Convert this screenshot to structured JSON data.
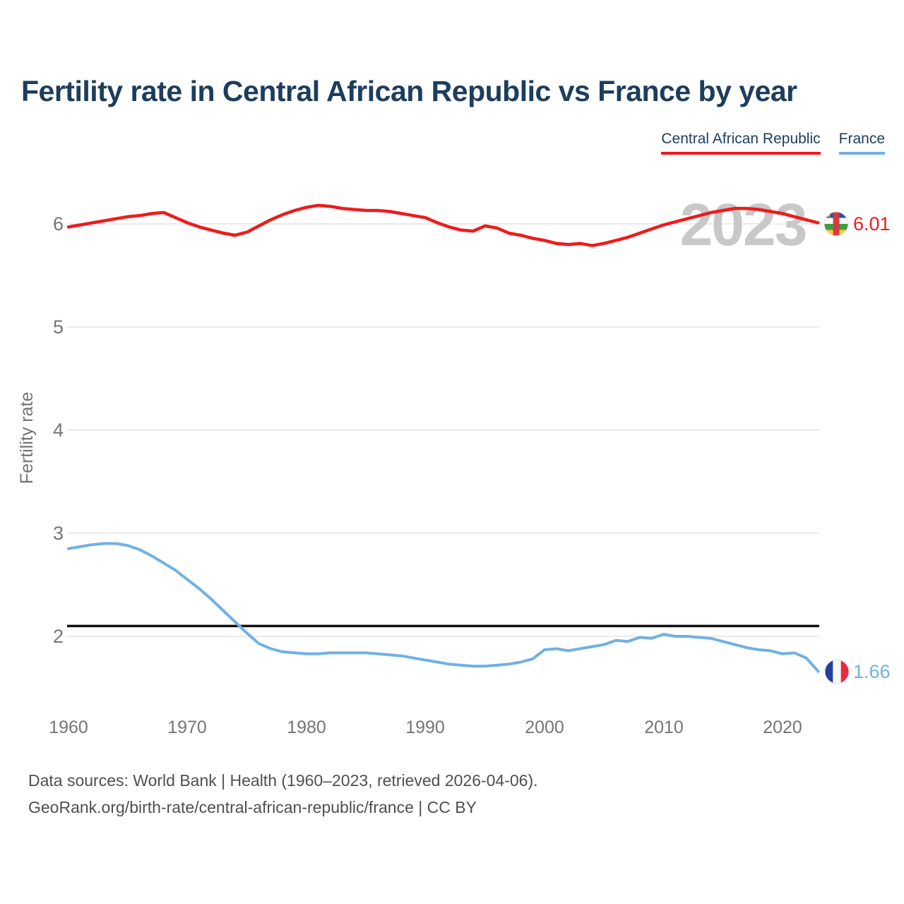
{
  "title": "Fertility rate in Central African Republic vs France by year",
  "watermark": "2023",
  "colors": {
    "title_text": "#1d3d5c",
    "axis_text": "#757575",
    "watermark": "#c8c8c8",
    "footer_text": "#4f4f4f",
    "gridline": "#ebebeb",
    "reference_line": "#111111"
  },
  "footer": {
    "line1": "Data sources: World Bank | Health (1960–2023, retrieved 2026-04-06).",
    "line2": "GeoRank.org/birth-rate/central-african-republic/france | CC BY"
  },
  "flags": {
    "car": {
      "stripe_colors": [
        "#2b4f9e",
        "#fafafa",
        "#3f9e3f",
        "#f7cf3f"
      ],
      "band_color": "#d33b40",
      "star_color": "#f7cf3f"
    },
    "france": {
      "stripe_colors": [
        "#20409a",
        "#f7f7f7",
        "#e12e40"
      ]
    }
  },
  "chart_data": {
    "type": "line",
    "title": "Fertility rate in Central African Republic vs France by year",
    "xlabel": "",
    "ylabel": "Fertility rate",
    "x_ticks": [
      1960,
      1970,
      1980,
      1990,
      2000,
      2010,
      2020
    ],
    "y_ticks": [
      6,
      5,
      4,
      3,
      2
    ],
    "xlim": [
      1960,
      2023
    ],
    "ylim": [
      1.45,
      6.4
    ],
    "grid": "horizontal",
    "legend_position": "top-right",
    "reference_line": {
      "value": 2.1,
      "color": "#111111"
    },
    "x": [
      1960,
      1961,
      1962,
      1963,
      1964,
      1965,
      1966,
      1967,
      1968,
      1969,
      1970,
      1971,
      1972,
      1973,
      1974,
      1975,
      1976,
      1977,
      1978,
      1979,
      1980,
      1981,
      1982,
      1983,
      1984,
      1985,
      1986,
      1987,
      1988,
      1989,
      1990,
      1991,
      1992,
      1993,
      1994,
      1995,
      1996,
      1997,
      1998,
      1999,
      2000,
      2001,
      2002,
      2003,
      2004,
      2005,
      2006,
      2007,
      2008,
      2009,
      2010,
      2011,
      2012,
      2013,
      2014,
      2015,
      2016,
      2017,
      2018,
      2019,
      2020,
      2021,
      2022,
      2023
    ],
    "series": [
      {
        "name": "Central African Republic",
        "color": "#ee1b1b",
        "end_label": "6.01",
        "values": [
          5.97,
          5.99,
          6.01,
          6.03,
          6.05,
          6.07,
          6.08,
          6.1,
          6.11,
          6.06,
          6.01,
          5.97,
          5.94,
          5.91,
          5.89,
          5.92,
          5.98,
          6.04,
          6.09,
          6.13,
          6.16,
          6.18,
          6.17,
          6.15,
          6.14,
          6.13,
          6.13,
          6.12,
          6.1,
          6.08,
          6.06,
          6.01,
          5.97,
          5.94,
          5.93,
          5.98,
          5.96,
          5.91,
          5.89,
          5.86,
          5.84,
          5.81,
          5.8,
          5.81,
          5.79,
          5.81,
          5.84,
          5.87,
          5.91,
          5.95,
          5.99,
          6.02,
          6.05,
          6.08,
          6.11,
          6.13,
          6.15,
          6.15,
          6.14,
          6.12,
          6.1,
          6.07,
          6.04,
          6.01
        ]
      },
      {
        "name": "France",
        "color": "#70b1e3",
        "end_label": "1.66",
        "values": [
          2.85,
          2.87,
          2.89,
          2.9,
          2.9,
          2.88,
          2.84,
          2.78,
          2.71,
          2.64,
          2.55,
          2.46,
          2.36,
          2.25,
          2.14,
          2.03,
          1.93,
          1.88,
          1.85,
          1.84,
          1.83,
          1.83,
          1.84,
          1.84,
          1.84,
          1.84,
          1.83,
          1.82,
          1.81,
          1.79,
          1.77,
          1.75,
          1.73,
          1.72,
          1.71,
          1.71,
          1.72,
          1.73,
          1.75,
          1.78,
          1.87,
          1.88,
          1.86,
          1.88,
          1.9,
          1.92,
          1.96,
          1.95,
          1.99,
          1.98,
          2.02,
          2.0,
          2.0,
          1.99,
          1.98,
          1.95,
          1.92,
          1.89,
          1.87,
          1.86,
          1.83,
          1.84,
          1.79,
          1.66
        ]
      }
    ]
  }
}
